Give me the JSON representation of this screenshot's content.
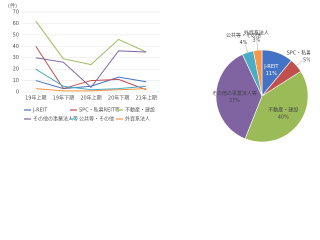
{
  "chart_data": [
    {
      "type": "line",
      "y_label": "(件)",
      "categories": [
        "19年上期",
        "19年下期",
        "20年上期",
        "20年下期",
        "21年上期"
      ],
      "ylim": [
        0,
        70
      ],
      "yticks": [
        0,
        10,
        20,
        30,
        40,
        50,
        60,
        70
      ],
      "grid": true,
      "series": [
        {
          "name": "J-REIT",
          "color": "#4472c4",
          "values": [
            10,
            3,
            5,
            13,
            9
          ]
        },
        {
          "name": "SPC・私募REIT等",
          "color": "#c0504d",
          "values": [
            40,
            3,
            10,
            11,
            2
          ]
        },
        {
          "name": "不動産・建設",
          "color": "#9bbb59",
          "values": [
            62,
            29,
            24,
            46,
            35
          ]
        },
        {
          "name": "その他の事業法人等",
          "color": "#8064a2",
          "values": [
            30,
            26,
            4,
            36,
            35
          ]
        },
        {
          "name": "公共等・その他",
          "color": "#4bacc6",
          "values": [
            20,
            5,
            2,
            3,
            5
          ]
        },
        {
          "name": "外資系法人",
          "color": "#f79646",
          "values": [
            3,
            1,
            1,
            2,
            3
          ]
        }
      ]
    },
    {
      "type": "pie",
      "categories": [
        "J-REIT",
        "SPC・私募REIT等",
        "不動産・建設",
        "その他の事業法人等",
        "公共等・その他",
        "外資系法人"
      ],
      "values": [
        11,
        5,
        40,
        37,
        4,
        3
      ],
      "value_labels": [
        "11%",
        "5%",
        "40%",
        "37%",
        "4%",
        "3%"
      ],
      "colors": [
        "#4472c4",
        "#c0504d",
        "#9bbb59",
        "#8064a2",
        "#4bacc6",
        "#f79646"
      ]
    }
  ]
}
